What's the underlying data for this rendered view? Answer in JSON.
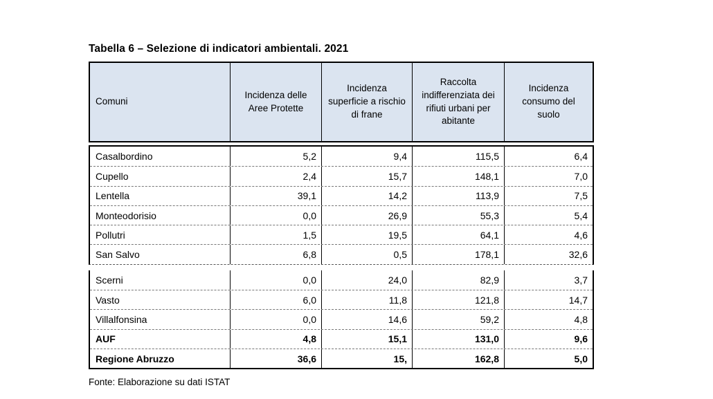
{
  "title": "Tabella 6 – Selezione di indicatori ambientali. 2021",
  "footer": "Fonte: Elaborazione su dati ISTAT",
  "colors": {
    "header_bg": "#dbe4f0",
    "border": "#000000",
    "text": "#000000"
  },
  "table": {
    "header": {
      "comuni": "Comuni",
      "col1": "Incidenza delle Aree Protette",
      "col2": "Incidenza superficie a rischio di frane",
      "col3": "Raccolta indifferenziata dei rifiuti urbani per abitante",
      "col4": "Incidenza consumo del suolo"
    },
    "sections": [
      {
        "rows": [
          {
            "comune": "Casalbordino",
            "values": [
              "5,2",
              "9,4",
              "115,5",
              "6,4"
            ]
          },
          {
            "comune": "Cupello",
            "values": [
              "2,4",
              "15,7",
              "148,1",
              "7,0"
            ]
          },
          {
            "comune": "Lentella",
            "values": [
              "39,1",
              "14,2",
              "113,9",
              "7,5"
            ]
          },
          {
            "comune": "Monteodorisio",
            "values": [
              "0,0",
              "26,9",
              "55,3",
              "5,4"
            ]
          },
          {
            "comune": "Pollutri",
            "values": [
              "1,5",
              "19,5",
              "64,1",
              "4,6"
            ]
          },
          {
            "comune": "San Salvo",
            "values": [
              "6,8",
              "0,5",
              "178,1",
              "32,6"
            ]
          }
        ]
      },
      {
        "rows": [
          {
            "comune": "Scerni",
            "values": [
              "0,0",
              "24,0",
              "82,9",
              "3,7"
            ],
            "bold": false
          },
          {
            "comune": "Vasto",
            "values": [
              "6,0",
              "11,8",
              "121,8",
              "14,7"
            ],
            "bold": false
          },
          {
            "comune": "Villalfonsina",
            "values": [
              "0,0",
              "14,6",
              "59,2",
              "4,8"
            ],
            "bold": false
          },
          {
            "comune": "AUF",
            "values": [
              "4,8",
              "15,1",
              "131,0",
              "9,6"
            ],
            "bold": true
          },
          {
            "comune": "Regione Abruzzo",
            "values": [
              "36,6",
              "15,",
              "162,8",
              "5,0"
            ],
            "bold": true
          }
        ]
      }
    ]
  }
}
